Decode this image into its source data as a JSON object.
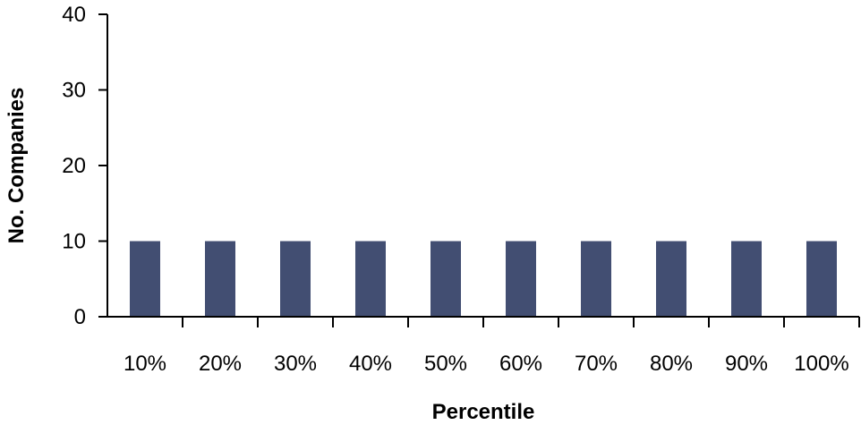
{
  "chart_data": {
    "type": "bar",
    "categories": [
      "10%",
      "20%",
      "30%",
      "40%",
      "50%",
      "60%",
      "70%",
      "80%",
      "90%",
      "100%"
    ],
    "values": [
      10,
      10,
      10,
      10,
      10,
      10,
      10,
      10,
      10,
      10
    ],
    "xlabel": "Percentile",
    "ylabel": "No. Companies",
    "ylim": [
      0,
      40
    ],
    "yticks": [
      "0",
      "10",
      "20",
      "30",
      "40"
    ],
    "grid": false,
    "bar_color": "#424e72"
  }
}
